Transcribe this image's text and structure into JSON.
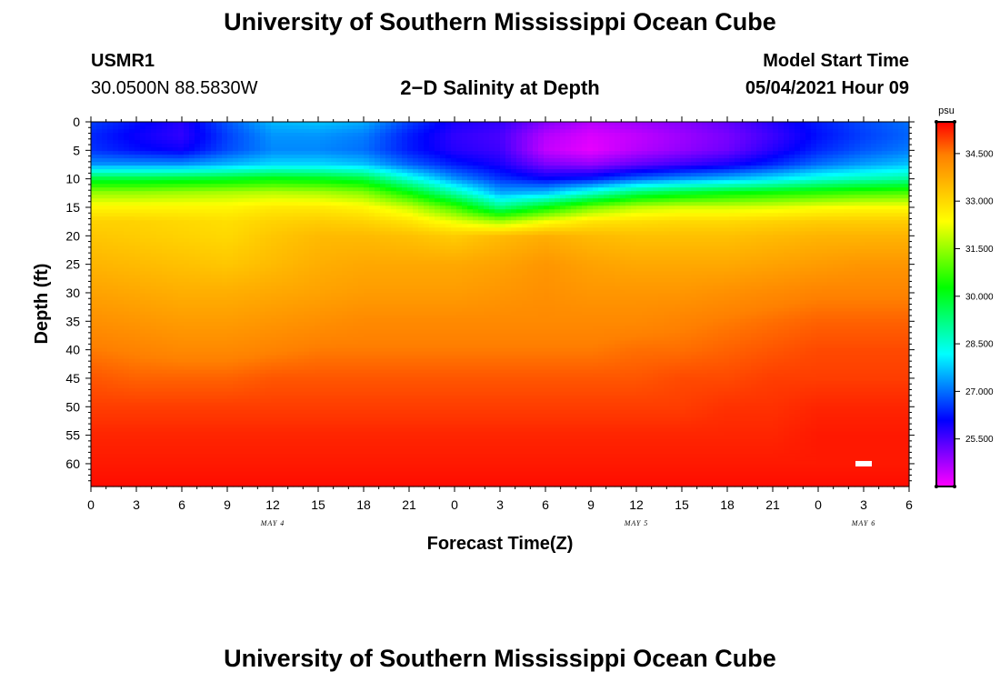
{
  "header": {
    "title": "University of Southern Mississippi Ocean Cube",
    "station_id": "USMR1",
    "station_coords": "30.0500N  88.5830W",
    "plot_title": "2−D Salinity at Depth",
    "model_start_label": "Model Start Time",
    "model_start_value": "05/04/2021 Hour 09"
  },
  "footer": {
    "title": "University of Southern Mississippi Ocean Cube"
  },
  "chart_data": {
    "type": "heatmap",
    "title": "2−D Salinity at Depth",
    "xlabel": "Forecast Time(Z)",
    "ylabel": "Depth (ft)",
    "ylim": [
      0,
      64
    ],
    "y_ticks": [
      0,
      5,
      10,
      15,
      20,
      25,
      30,
      35,
      40,
      45,
      50,
      55,
      60
    ],
    "xlim_hours": [
      0,
      54
    ],
    "x_tick_labels": [
      "0",
      "3",
      "6",
      "9",
      "12",
      "15",
      "18",
      "21",
      "0",
      "3",
      "6",
      "9",
      "12",
      "15",
      "18",
      "21",
      "0",
      "3",
      "6"
    ],
    "date_labels": [
      {
        "label": "MAY 4",
        "hour": 12
      },
      {
        "label": "MAY 5",
        "hour": 36
      },
      {
        "label": "MAY 6",
        "hour": 51
      }
    ],
    "colorbar": {
      "unit": "psu",
      "min": 24.0,
      "max": 35.5,
      "tick_labels": [
        "34.500",
        "33.000",
        "31.500",
        "30.000",
        "28.500",
        "27.000",
        "25.500"
      ],
      "tick_values": [
        34.5,
        33.0,
        31.5,
        30.0,
        28.5,
        27.0,
        25.5
      ]
    },
    "salinity_profiles": {
      "depths_ft": [
        0,
        2.5,
        5,
        7.5,
        10,
        12.5,
        15,
        17.5,
        20,
        25,
        30,
        35,
        40,
        45,
        50,
        55,
        60,
        64
      ],
      "columns": [
        {
          "hour": 0,
          "values": [
            26.6,
            26.4,
            26.5,
            27.3,
            29.8,
            31.5,
            32.5,
            33.1,
            33.3,
            33.6,
            33.9,
            34.2,
            34.5,
            34.8,
            35.0,
            35.2,
            35.3,
            35.4
          ]
        },
        {
          "hour": 3,
          "values": [
            26.2,
            26.0,
            26.2,
            27.3,
            29.8,
            31.5,
            32.5,
            33.1,
            33.2,
            33.5,
            33.8,
            34.1,
            34.4,
            34.7,
            35.0,
            35.2,
            35.3,
            35.4
          ]
        },
        {
          "hour": 6,
          "values": [
            25.8,
            25.7,
            26.0,
            27.3,
            29.9,
            31.6,
            32.5,
            33.0,
            33.1,
            33.4,
            33.7,
            34.0,
            34.3,
            34.7,
            35.0,
            35.2,
            35.3,
            35.4
          ]
        },
        {
          "hour": 9,
          "values": [
            26.8,
            26.6,
            26.7,
            27.6,
            30.0,
            31.7,
            32.5,
            32.9,
            33.0,
            33.3,
            33.7,
            34.0,
            34.3,
            34.7,
            35.0,
            35.2,
            35.3,
            35.4
          ]
        },
        {
          "hour": 12,
          "values": [
            27.6,
            27.3,
            27.2,
            27.9,
            30.2,
            31.8,
            32.7,
            33.1,
            33.3,
            33.5,
            33.8,
            34.1,
            34.4,
            34.8,
            35.0,
            35.2,
            35.3,
            35.4
          ]
        },
        {
          "hour": 15,
          "values": [
            27.7,
            27.3,
            27.2,
            27.9,
            30.1,
            31.7,
            32.7,
            33.2,
            33.5,
            33.7,
            33.9,
            34.2,
            34.5,
            34.8,
            35.0,
            35.2,
            35.3,
            35.4
          ]
        },
        {
          "hour": 18,
          "values": [
            27.5,
            27.1,
            27.0,
            27.7,
            29.8,
            31.4,
            32.5,
            33.1,
            33.5,
            33.8,
            34.0,
            34.3,
            34.5,
            34.8,
            35.0,
            35.2,
            35.3,
            35.4
          ]
        },
        {
          "hour": 21,
          "values": [
            26.6,
            26.3,
            26.3,
            26.9,
            28.5,
            30.3,
            31.9,
            32.8,
            33.4,
            33.8,
            34.0,
            34.3,
            34.5,
            34.8,
            35.0,
            35.2,
            35.3,
            35.4
          ]
        },
        {
          "hour": 24,
          "values": [
            25.9,
            25.7,
            25.8,
            26.3,
            27.3,
            28.9,
            30.8,
            32.2,
            33.2,
            33.8,
            34.0,
            34.3,
            34.5,
            34.8,
            35.0,
            35.2,
            35.3,
            35.4
          ]
        },
        {
          "hour": 27,
          "values": [
            25.7,
            25.5,
            25.6,
            25.9,
            26.5,
            27.5,
            29.2,
            31.6,
            33.5,
            33.9,
            34.1,
            34.3,
            34.5,
            34.8,
            35.0,
            35.2,
            35.3,
            35.4
          ]
        },
        {
          "hour": 30,
          "values": [
            25.0,
            24.6,
            24.5,
            25.1,
            26.1,
            27.7,
            30.2,
            32.3,
            33.7,
            34.1,
            34.2,
            34.3,
            34.5,
            34.8,
            35.0,
            35.2,
            35.3,
            35.4
          ]
        },
        {
          "hour": 33,
          "values": [
            24.6,
            24.3,
            24.2,
            24.9,
            26.3,
            28.6,
            31.2,
            32.8,
            33.5,
            33.9,
            34.1,
            34.3,
            34.5,
            34.8,
            35.0,
            35.2,
            35.3,
            35.4
          ]
        },
        {
          "hour": 36,
          "values": [
            24.8,
            24.5,
            24.6,
            25.3,
            26.9,
            29.5,
            31.8,
            32.9,
            33.4,
            33.8,
            34.1,
            34.3,
            34.6,
            34.8,
            35.0,
            35.2,
            35.3,
            35.4
          ]
        },
        {
          "hour": 39,
          "values": [
            25.0,
            24.8,
            24.9,
            25.6,
            27.3,
            29.9,
            32.0,
            33.0,
            33.4,
            33.8,
            34.1,
            34.4,
            34.6,
            34.9,
            35.0,
            35.2,
            35.3,
            35.4
          ]
        },
        {
          "hour": 42,
          "values": [
            25.3,
            25.1,
            25.2,
            25.9,
            27.6,
            30.2,
            32.0,
            33.0,
            33.4,
            33.8,
            34.2,
            34.5,
            34.7,
            34.9,
            35.1,
            35.2,
            35.3,
            35.4
          ]
        },
        {
          "hour": 45,
          "values": [
            25.8,
            25.6,
            25.8,
            26.4,
            28.0,
            30.4,
            32.1,
            33.1,
            33.5,
            33.9,
            34.3,
            34.6,
            34.8,
            35.0,
            35.1,
            35.2,
            35.3,
            35.4
          ]
        },
        {
          "hour": 48,
          "values": [
            26.3,
            26.2,
            26.4,
            27.0,
            28.5,
            30.6,
            32.3,
            33.2,
            33.6,
            34.0,
            34.4,
            34.7,
            34.9,
            35.0,
            35.2,
            35.3,
            35.3,
            35.4
          ]
        },
        {
          "hour": 51,
          "values": [
            26.7,
            26.6,
            26.8,
            27.4,
            28.8,
            30.8,
            32.4,
            33.2,
            33.6,
            34.1,
            34.4,
            34.7,
            34.9,
            35.0,
            35.2,
            35.3,
            35.3,
            35.4
          ]
        },
        {
          "hour": 54,
          "values": [
            27.0,
            26.9,
            27.1,
            27.7,
            29.0,
            30.9,
            32.4,
            33.2,
            33.6,
            34.1,
            34.4,
            34.7,
            34.9,
            35.0,
            35.2,
            35.3,
            35.3,
            35.4
          ]
        }
      ]
    },
    "marker": {
      "hour": 51,
      "depth_ft": 60
    }
  },
  "colors": {
    "palette": [
      "#ff00ff",
      "#8000ff",
      "#0000ff",
      "#0080ff",
      "#00ffff",
      "#00ff80",
      "#00ff00",
      "#80ff00",
      "#ffff00",
      "#ffc000",
      "#ff8000",
      "#ff0000"
    ]
  }
}
